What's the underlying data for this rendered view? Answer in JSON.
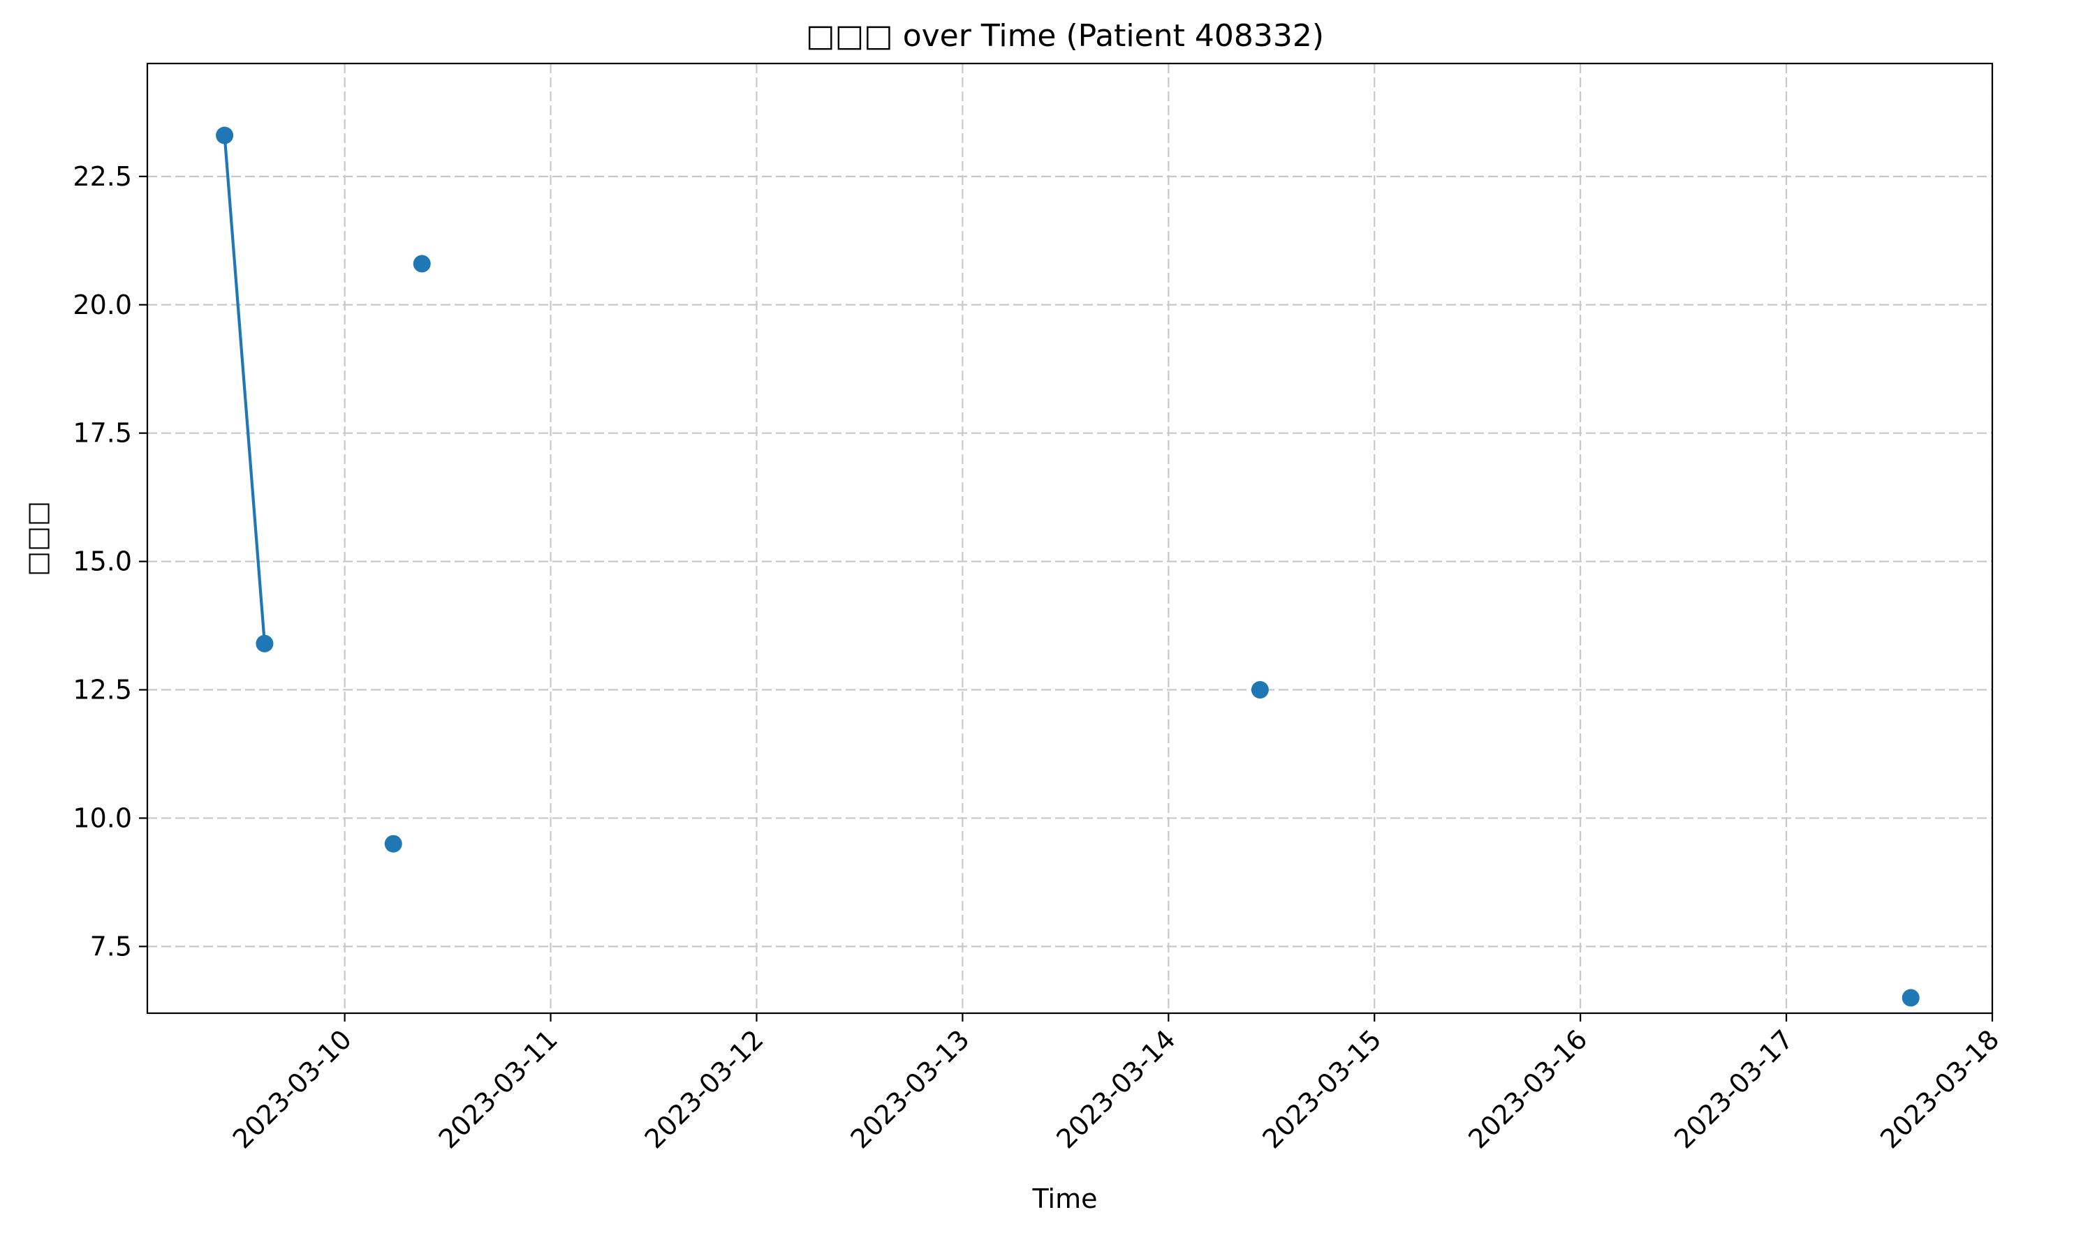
{
  "chart_data": {
    "type": "line",
    "title": "□□□ over Time (Patient 408332)",
    "xlabel": "Time",
    "ylabel": "□□□",
    "x_tick_labels": [
      "2023-03-10",
      "2023-03-11",
      "2023-03-12",
      "2023-03-13",
      "2023-03-14",
      "2023-03-15",
      "2023-03-16",
      "2023-03-17",
      "2023-03-18"
    ],
    "y_tick_labels": [
      "7.5",
      "10.0",
      "12.5",
      "15.0",
      "17.5",
      "20.0",
      "22.5"
    ],
    "y_ticks": [
      7.5,
      10.0,
      12.5,
      15.0,
      17.5,
      20.0,
      22.5
    ],
    "xlim": [
      "2023-03-09 01:00",
      "2023-03-18 00:00"
    ],
    "ylim": [
      6.2,
      24.7
    ],
    "grid": true,
    "color": "#1f77b4",
    "series": [
      {
        "x": [
          "2023-03-09 10:00",
          "2023-03-09 14:40",
          "2023-03-10 05:40",
          "2023-03-10 09:00",
          "2023-03-14 10:40",
          "2023-03-17 14:30"
        ],
        "values": [
          23.3,
          13.4,
          9.5,
          20.8,
          12.5,
          6.5
        ],
        "connect_first_n": 2
      }
    ]
  }
}
